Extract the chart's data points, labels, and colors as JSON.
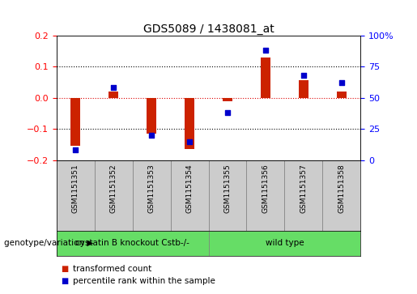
{
  "title": "GDS5089 / 1438081_at",
  "samples": [
    "GSM1151351",
    "GSM1151352",
    "GSM1151353",
    "GSM1151354",
    "GSM1151355",
    "GSM1151356",
    "GSM1151357",
    "GSM1151358"
  ],
  "transformed_count": [
    -0.155,
    0.02,
    -0.115,
    -0.165,
    -0.01,
    0.13,
    0.055,
    0.02
  ],
  "percentile_rank": [
    8,
    58,
    20,
    15,
    38,
    88,
    68,
    62
  ],
  "group1_samples": 4,
  "group1_label": "cystatin B knockout Cstb-/-",
  "group2_label": "wild type",
  "group_color": "#66dd66",
  "bar_color": "#cc2200",
  "dot_color": "#0000cc",
  "left_ylim": [
    -0.2,
    0.2
  ],
  "right_ylim": [
    0,
    100
  ],
  "left_yticks": [
    -0.2,
    -0.1,
    0.0,
    0.1,
    0.2
  ],
  "right_yticks": [
    0,
    25,
    50,
    75,
    100
  ],
  "right_yticklabels": [
    "0",
    "25",
    "50",
    "75",
    "100%"
  ],
  "legend_items": [
    "transformed count",
    "percentile rank within the sample"
  ],
  "legend_colors": [
    "#cc2200",
    "#0000cc"
  ],
  "genotype_label": "genotype/variation",
  "bg_color": "#ffffff",
  "plot_bg": "#ffffff",
  "label_bg": "#cccccc",
  "hline_y0_color": "#dd0000",
  "hline_color": "#000000"
}
